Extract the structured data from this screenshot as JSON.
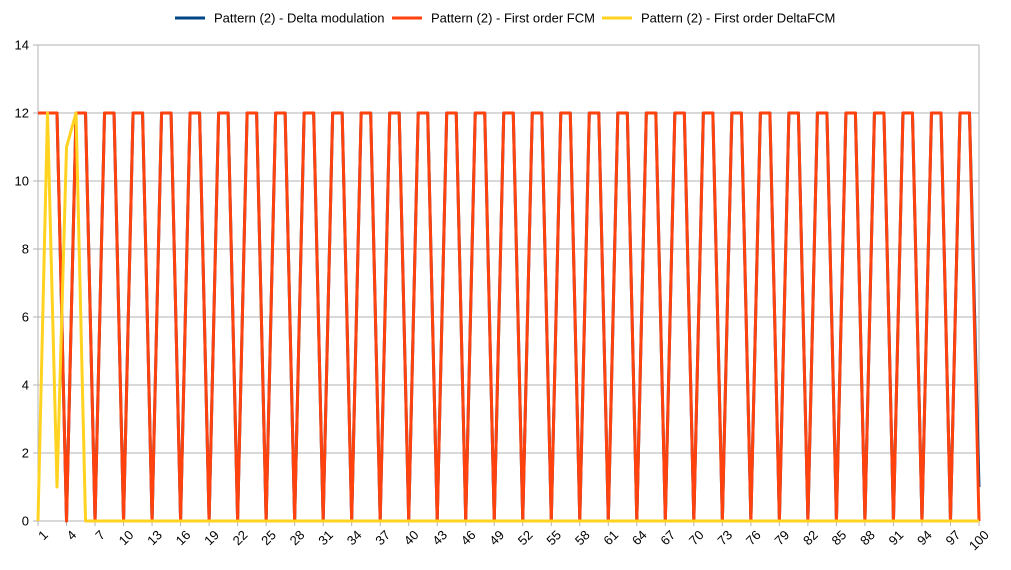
{
  "chart_data": {
    "type": "line",
    "title": "",
    "xlabel": "",
    "ylabel": "",
    "x_range": [
      1,
      100
    ],
    "x_tick_step": 3,
    "ylim": [
      0,
      14
    ],
    "y_ticks": [
      0,
      2,
      4,
      6,
      8,
      10,
      12,
      14
    ],
    "grid": true,
    "legend_position": "top",
    "series": [
      {
        "name": "Pattern (2) - Delta modulation",
        "color": "#004586",
        "values": [
          12,
          12,
          12,
          0,
          12,
          12,
          0,
          12,
          12,
          0,
          12,
          12,
          0,
          12,
          12,
          0,
          12,
          12,
          0,
          12,
          12,
          0,
          12,
          12,
          0,
          12,
          12,
          0,
          12,
          12,
          0,
          12,
          12,
          0,
          12,
          12,
          0,
          12,
          12,
          0,
          12,
          12,
          0,
          12,
          12,
          0,
          12,
          12,
          0,
          12,
          12,
          0,
          12,
          12,
          0,
          12,
          12,
          0,
          12,
          12,
          0,
          12,
          12,
          0,
          12,
          12,
          0,
          12,
          12,
          0,
          12,
          12,
          0,
          12,
          12,
          0,
          12,
          12,
          0,
          12,
          12,
          0,
          12,
          12,
          0,
          12,
          12,
          0,
          12,
          12,
          0,
          12,
          12,
          0,
          12,
          12,
          0,
          12,
          12,
          1
        ]
      },
      {
        "name": "Pattern (2) - First order FCM",
        "color": "#ff420e",
        "values": [
          12,
          12,
          12,
          0,
          12,
          12,
          0,
          12,
          12,
          0,
          12,
          12,
          0,
          12,
          12,
          0,
          12,
          12,
          0,
          12,
          12,
          0,
          12,
          12,
          0,
          12,
          12,
          0,
          12,
          12,
          0,
          12,
          12,
          0,
          12,
          12,
          0,
          12,
          12,
          0,
          12,
          12,
          0,
          12,
          12,
          0,
          12,
          12,
          0,
          12,
          12,
          0,
          12,
          12,
          0,
          12,
          12,
          0,
          12,
          12,
          0,
          12,
          12,
          0,
          12,
          12,
          0,
          12,
          12,
          0,
          12,
          12,
          0,
          12,
          12,
          0,
          12,
          12,
          0,
          12,
          12,
          0,
          12,
          12,
          0,
          12,
          12,
          0,
          12,
          12,
          0,
          12,
          12,
          0,
          12,
          12,
          0,
          12,
          12,
          0
        ]
      },
      {
        "name": "Pattern (2) - First order DeltaFCM",
        "color": "#ffd320",
        "values": [
          0,
          12,
          1,
          11,
          12,
          0,
          0,
          0,
          0,
          0,
          0,
          0,
          0,
          0,
          0,
          0,
          0,
          0,
          0,
          0,
          0,
          0,
          0,
          0,
          0,
          0,
          0,
          0,
          0,
          0,
          0,
          0,
          0,
          0,
          0,
          0,
          0,
          0,
          0,
          0,
          0,
          0,
          0,
          0,
          0,
          0,
          0,
          0,
          0,
          0,
          0,
          0,
          0,
          0,
          0,
          0,
          0,
          0,
          0,
          0,
          0,
          0,
          0,
          0,
          0,
          0,
          0,
          0,
          0,
          0,
          0,
          0,
          0,
          0,
          0,
          0,
          0,
          0,
          0,
          0,
          0,
          0,
          0,
          0,
          0,
          0,
          0,
          0,
          0,
          0,
          0,
          0,
          0,
          0,
          0,
          0,
          0,
          0,
          0,
          0
        ]
      }
    ]
  }
}
